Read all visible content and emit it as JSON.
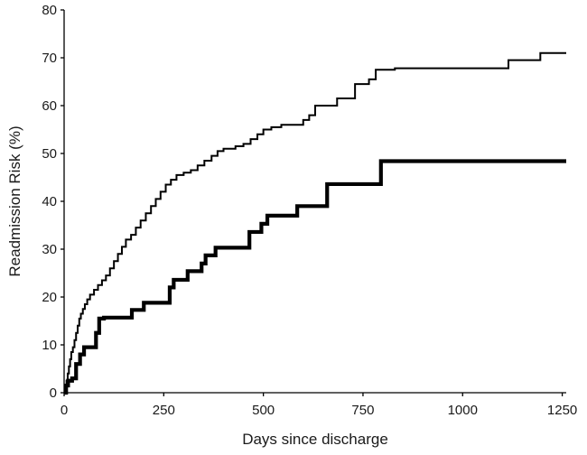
{
  "chart_data": {
    "type": "line",
    "xlabel": "Days since discharge",
    "ylabel": "Readmission Risk (%)",
    "xlim": [
      0,
      1260
    ],
    "ylim": [
      0,
      80
    ],
    "x_ticks": [
      0,
      250,
      500,
      750,
      1000,
      1250
    ],
    "y_ticks": [
      0,
      10,
      20,
      30,
      40,
      50,
      60,
      70,
      80
    ],
    "grid": false,
    "step": true,
    "series": [
      {
        "style": "thin",
        "color": "#000000",
        "points": [
          [
            0,
            0
          ],
          [
            3,
            1
          ],
          [
            6,
            2.5
          ],
          [
            9,
            4
          ],
          [
            12,
            5.5
          ],
          [
            15,
            7
          ],
          [
            18,
            8.5
          ],
          [
            22,
            9.5
          ],
          [
            26,
            11
          ],
          [
            30,
            12.5
          ],
          [
            34,
            14
          ],
          [
            38,
            15.5
          ],
          [
            42,
            16.5
          ],
          [
            47,
            17.5
          ],
          [
            52,
            18.5
          ],
          [
            58,
            19.5
          ],
          [
            65,
            20.5
          ],
          [
            75,
            21.5
          ],
          [
            85,
            22.5
          ],
          [
            95,
            23.5
          ],
          [
            105,
            24.5
          ],
          [
            115,
            26
          ],
          [
            125,
            27.5
          ],
          [
            135,
            29
          ],
          [
            145,
            30.5
          ],
          [
            155,
            32
          ],
          [
            168,
            33
          ],
          [
            180,
            34.5
          ],
          [
            192,
            36
          ],
          [
            205,
            37.5
          ],
          [
            218,
            39
          ],
          [
            230,
            40.5
          ],
          [
            242,
            42
          ],
          [
            255,
            43.5
          ],
          [
            268,
            44.5
          ],
          [
            282,
            45.5
          ],
          [
            300,
            46
          ],
          [
            318,
            46.5
          ],
          [
            335,
            47.5
          ],
          [
            352,
            48.5
          ],
          [
            370,
            49.5
          ],
          [
            385,
            50.5
          ],
          [
            400,
            51
          ],
          [
            430,
            51.5
          ],
          [
            450,
            52
          ],
          [
            468,
            53
          ],
          [
            485,
            54
          ],
          [
            500,
            55
          ],
          [
            520,
            55.5
          ],
          [
            545,
            56
          ],
          [
            600,
            57
          ],
          [
            615,
            58
          ],
          [
            630,
            60
          ],
          [
            685,
            61.5
          ],
          [
            730,
            64.5
          ],
          [
            765,
            65.5
          ],
          [
            782,
            67.5
          ],
          [
            830,
            67.8
          ],
          [
            1115,
            69.5
          ],
          [
            1195,
            71
          ],
          [
            1260,
            71
          ]
        ]
      },
      {
        "style": "thick",
        "color": "#000000",
        "points": [
          [
            0,
            0
          ],
          [
            5,
            1.5
          ],
          [
            10,
            2.5
          ],
          [
            20,
            3
          ],
          [
            30,
            6
          ],
          [
            40,
            8
          ],
          [
            50,
            9.5
          ],
          [
            80,
            12.5
          ],
          [
            88,
            15.5
          ],
          [
            100,
            15.7
          ],
          [
            170,
            17.3
          ],
          [
            200,
            18.8
          ],
          [
            265,
            22
          ],
          [
            275,
            23.6
          ],
          [
            310,
            25.4
          ],
          [
            345,
            27
          ],
          [
            355,
            28.7
          ],
          [
            380,
            30.3
          ],
          [
            400,
            30.3
          ],
          [
            465,
            33.6
          ],
          [
            495,
            35.3
          ],
          [
            510,
            37
          ],
          [
            585,
            39
          ],
          [
            660,
            43.6
          ],
          [
            700,
            43.6
          ],
          [
            795,
            48.4
          ],
          [
            1260,
            48.4
          ]
        ]
      }
    ]
  }
}
